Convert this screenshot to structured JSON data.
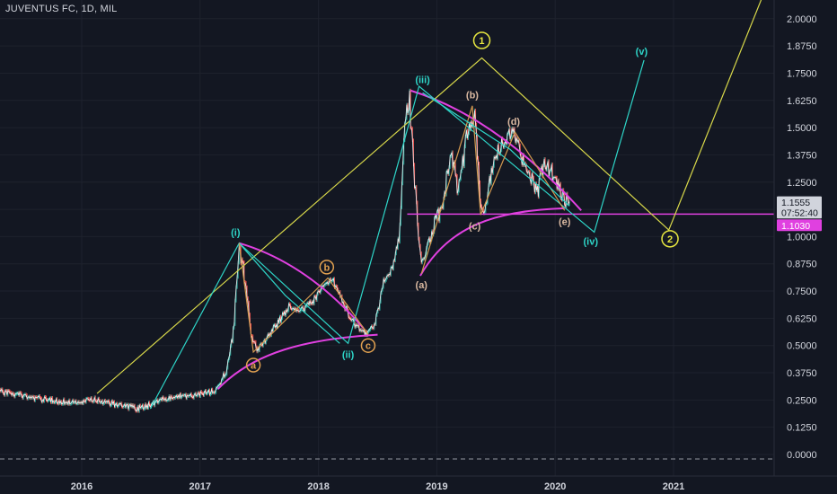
{
  "chart_title": "JUVENTUS FC, 1D, MIL",
  "colors": {
    "background": "#131722",
    "axis_text": "#d1d4dc",
    "candle_up": "#26a69a",
    "candle_down": "#ef5350",
    "price_line": "#ffffff",
    "wave_cyan": "#2ed5c8",
    "wave_yellow": "#d8d84a",
    "wave_orange": "#d49a50",
    "curve_magenta": "#e040e0",
    "label_orange": "#e0a050",
    "label_tan": "#d9b8a0",
    "label_yellow": "#e6e640"
  },
  "chart_data": {
    "type": "line",
    "title": "JUVENTUS FC, 1D, MIL",
    "ylim": [
      -0.01,
      2.1
    ],
    "y_ticks": [
      "0.0000",
      "0.1250",
      "0.2500",
      "0.3750",
      "0.5000",
      "0.6250",
      "0.7500",
      "0.8750",
      "1.0000",
      "1.1250",
      "1.2500",
      "1.3750",
      "1.5000",
      "1.6250",
      "1.7500",
      "1.8750",
      "2.0000"
    ],
    "x_ticks": [
      {
        "label": "2016",
        "t": 2016.0
      },
      {
        "label": "2017",
        "t": 2017.0
      },
      {
        "label": "2018",
        "t": 2018.0
      },
      {
        "label": "2019",
        "t": 2019.0
      },
      {
        "label": "2020",
        "t": 2020.0
      },
      {
        "label": "2021",
        "t": 2021.0
      }
    ],
    "xlim": [
      2015.3,
      2021.85
    ],
    "price_series": [
      [
        2015.3,
        0.29
      ],
      [
        2015.5,
        0.27
      ],
      [
        2015.7,
        0.25
      ],
      [
        2015.9,
        0.24
      ],
      [
        2016.1,
        0.25
      ],
      [
        2016.3,
        0.23
      ],
      [
        2016.48,
        0.21
      ],
      [
        2016.62,
        0.24
      ],
      [
        2016.8,
        0.27
      ],
      [
        2016.95,
        0.27
      ],
      [
        2017.12,
        0.29
      ],
      [
        2017.22,
        0.38
      ],
      [
        2017.28,
        0.55
      ],
      [
        2017.33,
        0.95
      ],
      [
        2017.38,
        0.8
      ],
      [
        2017.43,
        0.55
      ],
      [
        2017.48,
        0.48
      ],
      [
        2017.55,
        0.52
      ],
      [
        2017.65,
        0.6
      ],
      [
        2017.75,
        0.68
      ],
      [
        2017.85,
        0.66
      ],
      [
        2017.95,
        0.7
      ],
      [
        2018.05,
        0.78
      ],
      [
        2018.12,
        0.8
      ],
      [
        2018.2,
        0.7
      ],
      [
        2018.3,
        0.6
      ],
      [
        2018.4,
        0.55
      ],
      [
        2018.48,
        0.6
      ],
      [
        2018.55,
        0.8
      ],
      [
        2018.62,
        0.85
      ],
      [
        2018.68,
        1.0
      ],
      [
        2018.73,
        1.55
      ],
      [
        2018.77,
        1.62
      ],
      [
        2018.82,
        1.2
      ],
      [
        2018.87,
        0.87
      ],
      [
        2018.92,
        0.95
      ],
      [
        2018.98,
        1.05
      ],
      [
        2019.05,
        1.15
      ],
      [
        2019.12,
        1.4
      ],
      [
        2019.18,
        1.2
      ],
      [
        2019.25,
        1.45
      ],
      [
        2019.32,
        1.58
      ],
      [
        2019.38,
        1.1
      ],
      [
        2019.43,
        1.2
      ],
      [
        2019.5,
        1.38
      ],
      [
        2019.58,
        1.45
      ],
      [
        2019.65,
        1.48
      ],
      [
        2019.72,
        1.35
      ],
      [
        2019.78,
        1.3
      ],
      [
        2019.85,
        1.2
      ],
      [
        2019.9,
        1.33
      ],
      [
        2019.97,
        1.3
      ],
      [
        2020.03,
        1.22
      ],
      [
        2020.08,
        1.17
      ],
      [
        2020.12,
        1.16
      ]
    ],
    "wave_lines": [
      {
        "color": "wave_yellow",
        "points": [
          [
            2016.13,
            0.28
          ],
          [
            2019.38,
            1.82
          ],
          [
            2020.96,
            1.03
          ],
          [
            2021.75,
            2.1
          ]
        ]
      },
      {
        "color": "wave_cyan",
        "points": [
          [
            2016.58,
            0.21
          ],
          [
            2017.33,
            0.97
          ],
          [
            2018.25,
            0.51
          ],
          [
            2018.7,
            1.39
          ],
          [
            2018.85,
            1.69
          ],
          [
            2020.33,
            1.02
          ],
          [
            2020.75,
            1.81
          ]
        ]
      },
      {
        "color": "wave_cyan",
        "points": [
          [
            2017.33,
            0.97
          ],
          [
            2017.72,
            0.73
          ],
          [
            2018.18,
            0.51
          ]
        ]
      },
      {
        "color": "wave_orange",
        "points": [
          [
            2017.33,
            0.97
          ],
          [
            2017.45,
            0.47
          ],
          [
            2018.08,
            0.81
          ],
          [
            2018.42,
            0.55
          ]
        ]
      },
      {
        "color": "wave_orange",
        "points": [
          [
            2018.87,
            0.83
          ],
          [
            2019.3,
            1.6
          ],
          [
            2019.37,
            1.1
          ],
          [
            2019.66,
            1.48
          ],
          [
            2020.08,
            1.12
          ]
        ]
      },
      {
        "color": "wave_cyan",
        "points": [
          [
            2018.88,
            1.66
          ],
          [
            2019.62,
            1.4
          ],
          [
            2020.12,
            1.14
          ]
        ]
      }
    ],
    "curves": [
      {
        "name": "support-2017",
        "points": [
          [
            2017.15,
            0.3
          ],
          [
            2017.45,
            0.47
          ],
          [
            2017.9,
            0.53
          ],
          [
            2018.5,
            0.55
          ]
        ]
      },
      {
        "name": "resistance-2017",
        "points": [
          [
            2017.33,
            0.97
          ],
          [
            2017.9,
            0.88
          ],
          [
            2018.38,
            0.58
          ]
        ]
      },
      {
        "name": "support-2018",
        "points": [
          [
            2018.86,
            0.82
          ],
          [
            2019.1,
            1.05
          ],
          [
            2019.5,
            1.12
          ],
          [
            2020.08,
            1.13
          ]
        ]
      },
      {
        "name": "resistance-2018",
        "points": [
          [
            2018.78,
            1.67
          ],
          [
            2019.5,
            1.55
          ],
          [
            2020.22,
            1.12
          ]
        ]
      }
    ],
    "support_line": {
      "from": 2018.75,
      "to": 2021.85,
      "y": 1.103
    },
    "wave_labels": [
      {
        "text": "(i)",
        "t": 2017.3,
        "y": 1.02,
        "style": "cyan-text"
      },
      {
        "text": "(ii)",
        "t": 2018.25,
        "y": 0.46,
        "style": "cyan-text"
      },
      {
        "text": "(iii)",
        "t": 2018.88,
        "y": 1.72,
        "style": "cyan-text"
      },
      {
        "text": "(iv)",
        "t": 2020.3,
        "y": 0.98,
        "style": "cyan-text"
      },
      {
        "text": "(v)",
        "t": 2020.73,
        "y": 1.85,
        "style": "cyan-text"
      },
      {
        "text": "a",
        "t": 2017.45,
        "y": 0.41,
        "style": "orange-circle"
      },
      {
        "text": "b",
        "t": 2018.07,
        "y": 0.86,
        "style": "orange-circle"
      },
      {
        "text": "c",
        "t": 2018.42,
        "y": 0.5,
        "style": "orange-circle"
      },
      {
        "text": "(a)",
        "t": 2018.87,
        "y": 0.78,
        "style": "tan-text"
      },
      {
        "text": "(b)",
        "t": 2019.3,
        "y": 1.65,
        "style": "tan-text"
      },
      {
        "text": "(c)",
        "t": 2019.32,
        "y": 1.05,
        "style": "tan-text"
      },
      {
        "text": "(d)",
        "t": 2019.65,
        "y": 1.53,
        "style": "tan-text"
      },
      {
        "text": "(e)",
        "t": 2020.08,
        "y": 1.07,
        "style": "tan-text"
      },
      {
        "text": "1",
        "t": 2019.38,
        "y": 1.9,
        "style": "yellow-circle"
      },
      {
        "text": "2",
        "t": 2020.97,
        "y": 0.99,
        "style": "yellow-circle"
      }
    ],
    "price_tags": [
      {
        "text": "1.1555",
        "y": 1.1555,
        "bg": "#d1d4dc",
        "fg": "#131722"
      },
      {
        "text": "07:52:40",
        "y": 1.108,
        "bg": "#d1d4dc",
        "fg": "#131722"
      },
      {
        "text": "1.1030",
        "y": 1.05,
        "bg": "#e040e0",
        "fg": "#ffffff"
      }
    ]
  }
}
